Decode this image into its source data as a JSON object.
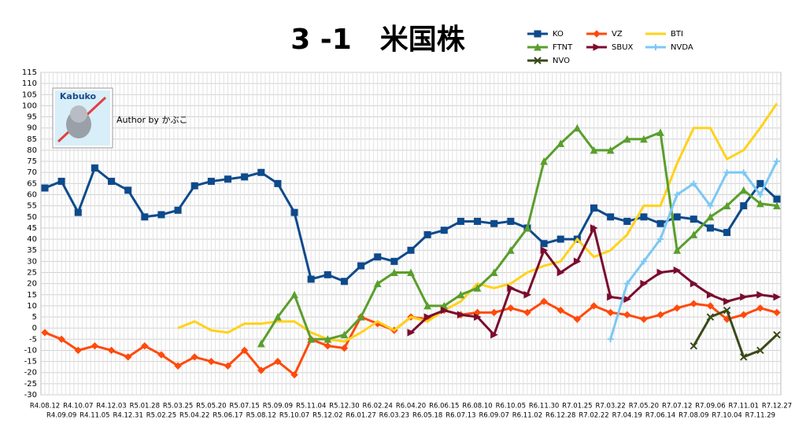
{
  "chart_data": {
    "type": "line",
    "title": "3 -1　米国株",
    "logo_text": "Kabuko",
    "author": "Author by かぶこ",
    "categories": [
      "R4.08.12",
      "R4.09.09",
      "R4.10.07",
      "R4.11.05",
      "R4.12.03",
      "R4.12.31",
      "R5.01.28",
      "R5.02.25",
      "R5.03.25",
      "R5.04.22",
      "R5.05.20",
      "R5.06.17",
      "R5.07.15",
      "R5.08.12",
      "R5.09.09",
      "R5.10.07",
      "R5.11.04",
      "R5.12.02",
      "R5.12.30",
      "R6.01.27",
      "R6.02.24",
      "R6.03.23",
      "R6.04.20",
      "R6.05.18",
      "R6.06.15",
      "R6.07.13",
      "R6.08.10",
      "R6.09.07",
      "R6.10.05",
      "R6.11.02",
      "R6.11.30",
      "R6.12.28",
      "R7.01.25",
      "R7.02.22",
      "R7.03.22",
      "R7.04.19",
      "R7.05.20",
      "R7.06.14",
      "R7.07.12",
      "R7.08.09",
      "R7.09.06",
      "R7.10.04",
      "R7.11.01",
      "R7.11.29",
      "R7.12.27"
    ],
    "series": [
      {
        "name": "KO",
        "color": "#0d4a8c",
        "marker": "square",
        "values": [
          63,
          66,
          52,
          72,
          66,
          62,
          50,
          51,
          53,
          64,
          66,
          67,
          68,
          70,
          65,
          52,
          22,
          24,
          21,
          28,
          32,
          30,
          35,
          42,
          44,
          48,
          48,
          47,
          48,
          45,
          38,
          40,
          40,
          54,
          50,
          48,
          50,
          47,
          50,
          49,
          45,
          43,
          55,
          65,
          58
        ]
      },
      {
        "name": "VZ",
        "color": "#ff4a0a",
        "marker": "diamond",
        "values": [
          -2,
          -5,
          -10,
          -8,
          -10,
          -13,
          -8,
          -12,
          -17,
          -13,
          -15,
          -17,
          -10,
          -19,
          -15,
          -21,
          -5,
          -8,
          -9,
          5,
          2,
          -1,
          5,
          4,
          8,
          6,
          7,
          7,
          9,
          7,
          12,
          8,
          4,
          10,
          7,
          6,
          4,
          6,
          9,
          11,
          10,
          4,
          6,
          9,
          7
        ]
      },
      {
        "name": "BTI",
        "color": "#ffd21a",
        "marker": "none",
        "values": [
          null,
          null,
          null,
          null,
          null,
          null,
          null,
          null,
          0,
          3,
          -1,
          -2,
          2,
          2,
          3,
          3,
          -2,
          -5,
          -6,
          -2,
          3,
          -1,
          5,
          3,
          8,
          12,
          20,
          18,
          20,
          25,
          28,
          30,
          40,
          32,
          35,
          42,
          55,
          55,
          74,
          90,
          90,
          76,
          80,
          90,
          101
        ]
      },
      {
        "name": "FTNT",
        "color": "#5a9e2c",
        "marker": "triangle",
        "values": [
          null,
          null,
          null,
          null,
          null,
          null,
          null,
          null,
          null,
          null,
          null,
          null,
          null,
          -7,
          5,
          15,
          -5,
          -5,
          -3,
          5,
          20,
          25,
          25,
          10,
          10,
          15,
          18,
          25,
          35,
          45,
          75,
          83,
          90,
          80,
          80,
          85,
          85,
          88,
          35,
          42,
          50,
          55,
          62,
          56,
          55
        ]
      },
      {
        "name": "SBUX",
        "color": "#7a0c2e",
        "marker": "tri-right",
        "values": [
          null,
          null,
          null,
          null,
          null,
          null,
          null,
          null,
          null,
          null,
          null,
          null,
          null,
          null,
          null,
          null,
          null,
          null,
          null,
          null,
          null,
          null,
          -2,
          5,
          8,
          6,
          5,
          -3,
          18,
          15,
          35,
          25,
          30,
          45,
          14,
          13,
          20,
          25,
          26,
          20,
          15,
          12,
          14,
          15,
          14
        ]
      },
      {
        "name": "NVDA",
        "color": "#7cc8f4",
        "marker": "plus",
        "values": [
          null,
          null,
          null,
          null,
          null,
          null,
          null,
          null,
          null,
          null,
          null,
          null,
          null,
          null,
          null,
          null,
          null,
          null,
          null,
          null,
          null,
          null,
          null,
          null,
          null,
          null,
          null,
          null,
          null,
          null,
          null,
          null,
          null,
          null,
          -5,
          20,
          30,
          40,
          60,
          65,
          55,
          70,
          70,
          60,
          75
        ]
      },
      {
        "name": "NVO",
        "color": "#3a4a18",
        "marker": "x",
        "values": [
          null,
          null,
          null,
          null,
          null,
          null,
          null,
          null,
          null,
          null,
          null,
          null,
          null,
          null,
          null,
          null,
          null,
          null,
          null,
          null,
          null,
          null,
          null,
          null,
          null,
          null,
          null,
          null,
          null,
          null,
          null,
          null,
          null,
          null,
          null,
          null,
          null,
          null,
          null,
          -8,
          5,
          8,
          -13,
          -10,
          -3
        ]
      }
    ],
    "ylim": [
      -30,
      115
    ],
    "yticks": [
      -30,
      -25,
      -20,
      -15,
      -10,
      -5,
      0,
      5,
      10,
      15,
      20,
      25,
      30,
      35,
      40,
      45,
      50,
      55,
      60,
      65,
      70,
      75,
      80,
      85,
      90,
      95,
      100,
      105,
      110,
      115
    ],
    "grid": true
  }
}
